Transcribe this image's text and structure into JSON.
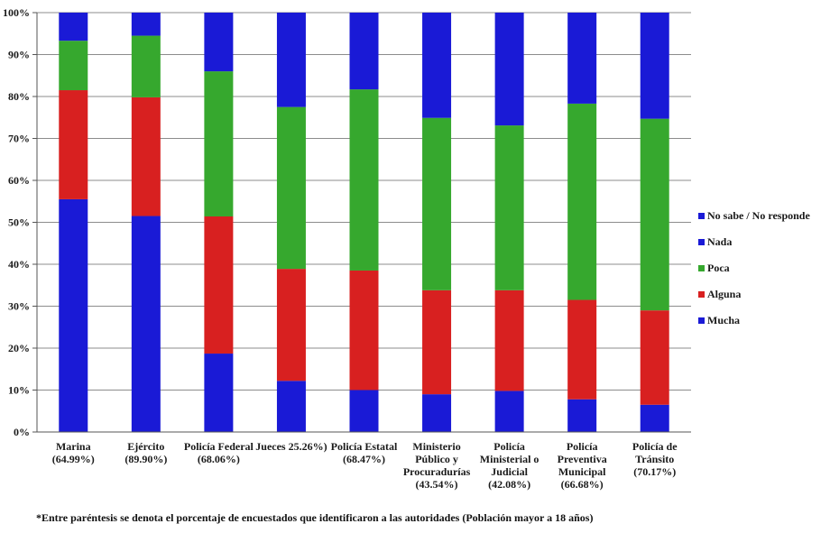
{
  "chart_data": {
    "type": "stacked-bar",
    "ylim": [
      0,
      100
    ],
    "y_ticks": [
      "0%",
      "10%",
      "20%",
      "30%",
      "40%",
      "50%",
      "60%",
      "70%",
      "80%",
      "90%",
      "100%"
    ],
    "grid": true,
    "legend_position": "right",
    "categories": [
      [
        "Marina",
        "(64.99%)"
      ],
      [
        "Ejército",
        "(89.90%)"
      ],
      [
        "Policía Federal",
        "(68.06%)"
      ],
      [
        "Jueces 25.26%)"
      ],
      [
        "Policía Estatal",
        "(68.47%)"
      ],
      [
        "Ministerio",
        "Público y",
        "Procuradurías",
        "(43.54%)"
      ],
      [
        "Policía",
        "Ministerial o",
        "Judicial",
        "(42.08%)"
      ],
      [
        "Policía",
        "Preventiva",
        "Municipal",
        "(66.68%)"
      ],
      [
        "Policía de",
        "Tránsito",
        "(70.17%)"
      ]
    ],
    "series": [
      {
        "name": "Mucha",
        "color": "#1a1ad6",
        "values": [
          55.5,
          51.5,
          18.7,
          12.2,
          10.0,
          9.0,
          9.8,
          7.8,
          6.5
        ]
      },
      {
        "name": "Alguna",
        "color": "#d82020",
        "values": [
          26.0,
          28.3,
          32.7,
          26.7,
          28.5,
          24.8,
          24.0,
          23.7,
          22.5
        ]
      },
      {
        "name": "Poca",
        "color": "#36a82e",
        "values": [
          11.8,
          14.7,
          34.6,
          38.6,
          43.2,
          41.1,
          39.3,
          46.8,
          45.7
        ]
      },
      {
        "name": "Nada",
        "color": "#1a1ad6",
        "values": [
          6.7,
          5.5,
          14.0,
          22.5,
          18.3,
          25.1,
          26.9,
          21.7,
          25.3
        ]
      },
      {
        "name": "No sabe / No responde",
        "color": "#1a1ad6",
        "values": [
          0,
          0,
          0,
          0,
          0,
          0,
          0,
          0,
          0
        ]
      }
    ],
    "legend_order": [
      "No sabe / No responde",
      "Nada",
      "Poca",
      "Alguna",
      "Mucha"
    ],
    "footnote": "*Entre paréntesis se denota el porcentaje de encuestados que identificaron a las autoridades (Población mayor a 18 años)"
  }
}
